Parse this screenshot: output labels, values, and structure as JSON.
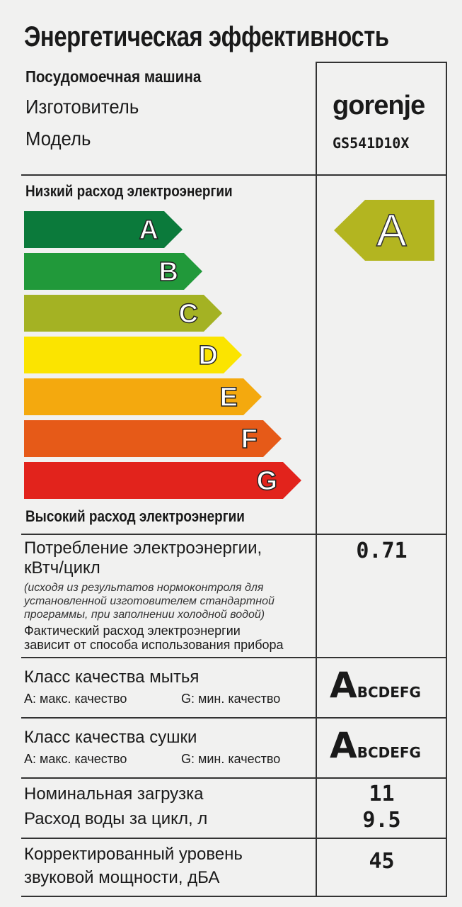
{
  "title": "Энергетическая эффективность",
  "appliance": "Посудомоечная машина",
  "manufacturer_label": "Изготовитель",
  "model_label": "Модель",
  "manufacturer": "gorenje",
  "model": "GS541D10X",
  "low_consumption": "Низкий расход электроэнергии",
  "high_consumption": "Высокий расход электроэнергии",
  "classes": [
    {
      "letter": "A",
      "color": "#0b7a3b"
    },
    {
      "letter": "B",
      "color": "#21993a"
    },
    {
      "letter": "C",
      "color": "#a4b223"
    },
    {
      "letter": "D",
      "color": "#fbe400"
    },
    {
      "letter": "E",
      "color": "#f4a90e"
    },
    {
      "letter": "F",
      "color": "#e65a18"
    },
    {
      "letter": "G",
      "color": "#e2231c"
    }
  ],
  "rating": {
    "letter": "A",
    "color": "#b3b520"
  },
  "consumption": {
    "label1": "Потребление электроэнергии,",
    "label2": "кВтч/цикл",
    "note1": "(исходя из результатов нормоконтроля для",
    "note2": "установленной изготовителем стандартной",
    "note3": "программы, при заполнении холодной водой)",
    "info1": "Фактический расход электроэнергии",
    "info2": "зависит от способа использования прибора",
    "value": "0.71"
  },
  "washing": {
    "label": "Класс качества мытья",
    "max": "A: макс. качество",
    "min": "G: мин. качество",
    "class": "A",
    "rest": "BCDEFG"
  },
  "drying": {
    "label": "Класс качества сушки",
    "max": "A: макс. качество",
    "min": "G: мин. качество",
    "class": "A",
    "rest": "BCDEFG"
  },
  "capacity": {
    "label": "Номинальная загрузка",
    "value": "11"
  },
  "water": {
    "label": "Расход воды за цикл, л",
    "value": "9.5"
  },
  "noise": {
    "label1": "Корректированный уровень",
    "label2": "звуковой мощности, дБА",
    "value": "45"
  }
}
